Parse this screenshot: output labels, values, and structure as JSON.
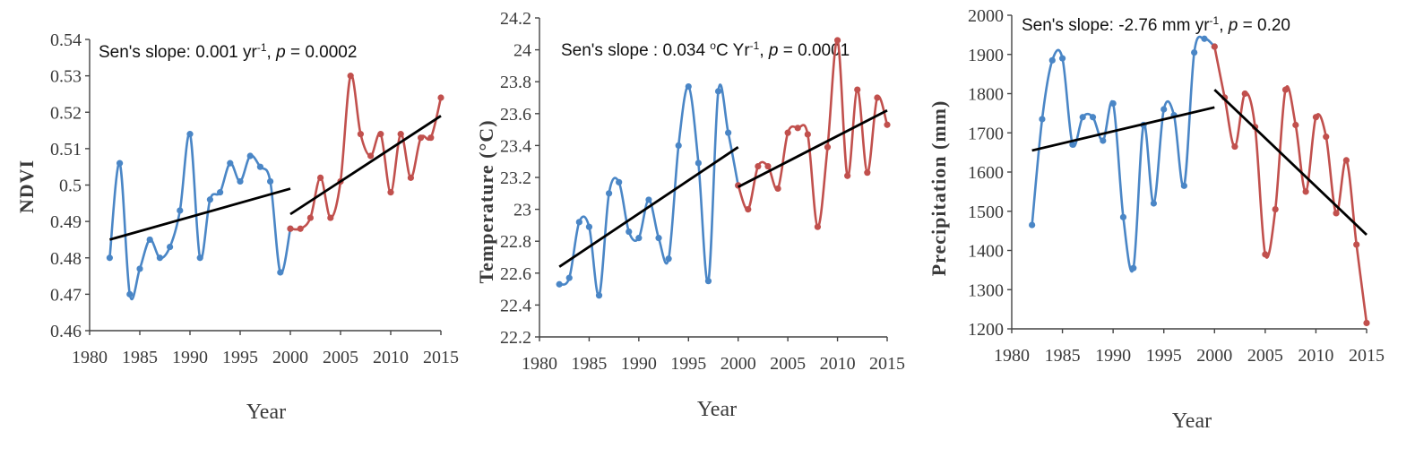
{
  "chart_data": [
    {
      "type": "line",
      "ylabel": "NDVI",
      "xlabel": "Year",
      "ylim": [
        0.46,
        0.54
      ],
      "yticks": [
        "0.46",
        "0.47",
        "0.48",
        "0.49",
        "0.5",
        "0.51",
        "0.52",
        "0.53",
        "0.54"
      ],
      "xlim": [
        1980,
        2015
      ],
      "xticks": [
        "1980",
        "1985",
        "1990",
        "1995",
        "2000",
        "2005",
        "2010",
        "2015"
      ],
      "annotation": {
        "pre": "Sen's slope: 0.001 yr",
        "sup": "-1",
        "mid": ", ",
        "p": "p",
        "post": " = 0.0002"
      },
      "grid": false,
      "series": [
        {
          "x": [
            1982,
            1983,
            1984,
            1985,
            1986,
            1987,
            1988,
            1989,
            1990,
            1991,
            1992,
            1993,
            1994,
            1995,
            1996,
            1997,
            1998,
            1999,
            2000
          ],
          "values": [
            0.48,
            0.506,
            0.47,
            0.477,
            0.485,
            0.48,
            0.483,
            0.493,
            0.514,
            0.48,
            0.496,
            0.498,
            0.506,
            0.501,
            0.508,
            0.505,
            0.501,
            0.476,
            0.488
          ],
          "color": "#4a86c6"
        },
        {
          "x": [
            2000,
            2001,
            2002,
            2003,
            2004,
            2005,
            2006,
            2007,
            2008,
            2009,
            2010,
            2011,
            2012,
            2013,
            2014,
            2015
          ],
          "values": [
            0.488,
            0.488,
            0.491,
            0.502,
            0.491,
            0.501,
            0.53,
            0.514,
            0.508,
            0.514,
            0.498,
            0.514,
            0.502,
            0.513,
            0.513,
            0.524
          ],
          "color": "#c1504d"
        }
      ],
      "trendlines": [
        {
          "x": [
            1982,
            2000
          ],
          "y": [
            0.485,
            0.499
          ],
          "color": "#000000"
        },
        {
          "x": [
            2000,
            2015
          ],
          "y": [
            0.492,
            0.519
          ],
          "color": "#000000"
        }
      ]
    },
    {
      "type": "line",
      "ylabel": "Temperature (°C)",
      "xlabel": "Year",
      "ylim": [
        22.2,
        24.2
      ],
      "yticks": [
        "22.2",
        "22.4",
        "22.6",
        "22.8",
        "23",
        "23.2",
        "23.4",
        "23.6",
        "23.8",
        "24",
        "24.2"
      ],
      "xlim": [
        1980,
        2015
      ],
      "xticks": [
        "1980",
        "1985",
        "1990",
        "1995",
        "2000",
        "2005",
        "2010",
        "2015"
      ],
      "annotation": {
        "pre": "Sen's slope : 0.034 ",
        "sup0": "o",
        "unit": "C Yr",
        "sup": "-1",
        "mid": ", ",
        "p": "p",
        "post": " = 0.0001"
      },
      "grid": false,
      "series": [
        {
          "x": [
            1982,
            1983,
            1984,
            1985,
            1986,
            1987,
            1988,
            1989,
            1990,
            1991,
            1992,
            1993,
            1994,
            1995,
            1996,
            1997,
            1998,
            1999,
            2000
          ],
          "values": [
            22.53,
            22.57,
            22.92,
            22.89,
            22.46,
            23.1,
            23.17,
            22.86,
            22.82,
            23.06,
            22.82,
            22.69,
            23.4,
            23.77,
            23.29,
            22.55,
            23.74,
            23.48,
            23.15
          ],
          "color": "#4a86c6"
        },
        {
          "x": [
            2000,
            2001,
            2002,
            2003,
            2004,
            2005,
            2006,
            2007,
            2008,
            2009,
            2010,
            2011,
            2012,
            2013,
            2014,
            2015
          ],
          "values": [
            23.15,
            23.0,
            23.27,
            23.27,
            23.13,
            23.48,
            23.51,
            23.47,
            22.89,
            23.39,
            24.06,
            23.21,
            23.75,
            23.23,
            23.7,
            23.53
          ],
          "color": "#c1504d"
        }
      ],
      "trendlines": [
        {
          "x": [
            1982,
            2000
          ],
          "y": [
            22.64,
            23.39
          ],
          "color": "#000000"
        },
        {
          "x": [
            2000,
            2015
          ],
          "y": [
            23.14,
            23.62
          ],
          "color": "#000000"
        }
      ]
    },
    {
      "type": "line",
      "ylabel": "Precipitation (mm)",
      "xlabel": "Year",
      "ylim": [
        1200,
        2000
      ],
      "yticks": [
        "1200",
        "1300",
        "1400",
        "1500",
        "1600",
        "1700",
        "1800",
        "1900",
        "2000"
      ],
      "xlim": [
        1980,
        2015
      ],
      "xticks": [
        "1980",
        "1985",
        "1990",
        "1995",
        "2000",
        "2005",
        "2010",
        "2015"
      ],
      "annotation": {
        "pre": "Sen's slope: -2.76 mm yr",
        "sup": "-1",
        "mid": ", ",
        "p": "p",
        "post": " = 0.20"
      },
      "grid": false,
      "series": [
        {
          "x": [
            1982,
            1983,
            1984,
            1985,
            1986,
            1987,
            1988,
            1989,
            1990,
            1991,
            1992,
            1993,
            1994,
            1995,
            1996,
            1997,
            1998,
            1999,
            2000
          ],
          "values": [
            1465,
            1735,
            1885,
            1890,
            1670,
            1740,
            1740,
            1680,
            1775,
            1485,
            1355,
            1720,
            1520,
            1760,
            1745,
            1565,
            1905,
            1940,
            1920
          ],
          "color": "#4a86c6"
        },
        {
          "x": [
            2000,
            2001,
            2002,
            2003,
            2004,
            2005,
            2006,
            2007,
            2008,
            2009,
            2010,
            2011,
            2012,
            2013,
            2014,
            2015
          ],
          "values": [
            1920,
            1790,
            1665,
            1800,
            1715,
            1390,
            1505,
            1810,
            1720,
            1550,
            1740,
            1690,
            1495,
            1630,
            1415,
            1215
          ],
          "color": "#c1504d"
        }
      ],
      "trendlines": [
        {
          "x": [
            1982,
            2000
          ],
          "y": [
            1655,
            1765
          ],
          "color": "#000000"
        },
        {
          "x": [
            2000,
            2015
          ],
          "y": [
            1810,
            1440
          ],
          "color": "#000000"
        }
      ]
    }
  ]
}
